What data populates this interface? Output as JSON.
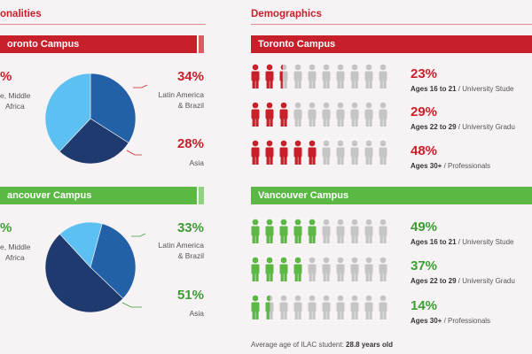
{
  "sections": {
    "left_title": "onalities",
    "right_title": "Demographics"
  },
  "colors": {
    "red": "#c8202a",
    "green": "#5bb845",
    "pie_light": "#5cc0f2",
    "pie_mid": "#2260a8",
    "pie_dark": "#1f3a6e",
    "person_gray": "#c5c5c5"
  },
  "nationalities": {
    "toronto": {
      "banner": "oronto Campus",
      "left_pct": "%",
      "left_label_1": "e, Middle",
      "left_label_2": "Africa",
      "latam_pct": "34%",
      "latam_label_1": "Latin America",
      "latam_label_2": "& Brazil",
      "asia_pct": "28%",
      "asia_label": "Asia"
    },
    "vancouver": {
      "banner": "ancouver Campus",
      "left_pct": "%",
      "left_label_1": "e, Middle",
      "left_label_2": "Africa",
      "latam_pct": "33%",
      "latam_label_1": "Latin America",
      "latam_label_2": "& Brazil",
      "asia_pct": "51%",
      "asia_label": "Asia"
    }
  },
  "demographics": {
    "toronto": {
      "banner": "Toronto Campus",
      "rows": [
        {
          "pct": "23%",
          "ages": "Ages 16 to 21",
          "desc": " / University Stude"
        },
        {
          "pct": "29%",
          "ages": "Ages 22 to 29",
          "desc": " / University Gradu"
        },
        {
          "pct": "48%",
          "ages": "Ages 30+",
          "desc": " / Professionals"
        }
      ]
    },
    "vancouver": {
      "banner": "Vancouver Campus",
      "rows": [
        {
          "pct": "49%",
          "ages": "Ages 16 to 21",
          "desc": " / University Stude"
        },
        {
          "pct": "37%",
          "ages": "Ages 22 to 29",
          "desc": " / University Gradu"
        },
        {
          "pct": "14%",
          "ages": "Ages 30+",
          "desc": " / Professionals"
        }
      ]
    }
  },
  "footer": {
    "prefix": "Average age of ILAC student: ",
    "value": "28.8 years old"
  },
  "chart_data": [
    {
      "type": "pie",
      "title": "",
      "labels": [
        "Latin America & Brazil",
        "Asia",
        ""
      ],
      "values": [
        34,
        28,
        38
      ]
    },
    {
      "type": "pie",
      "title": "",
      "labels": [
        "Latin America & Brazil",
        "Asia",
        ""
      ],
      "values": [
        33,
        51,
        16
      ]
    },
    {
      "type": "bar",
      "title": "",
      "categories": [
        "Ages 16 to 21",
        "Ages 22 to 29",
        "Ages 30+"
      ],
      "values": [
        23,
        29,
        48
      ]
    },
    {
      "type": "bar",
      "title": "",
      "categories": [
        "Ages 16 to 21",
        "Ages 22 to 29",
        "Ages 30+"
      ],
      "values": [
        49,
        37,
        14
      ]
    }
  ]
}
